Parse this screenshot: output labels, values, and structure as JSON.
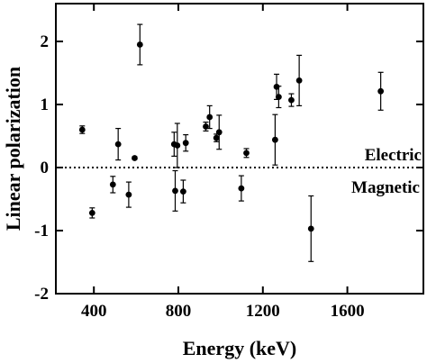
{
  "chart_data": {
    "type": "scatter",
    "xlabel": "Energy (keV)",
    "ylabel": "Linear polarization",
    "xlim": [
      220,
      1960
    ],
    "ylim": [
      -2,
      2.6
    ],
    "xticks": [
      400,
      800,
      1200,
      1600
    ],
    "yticks": [
      -2,
      -1,
      0,
      1,
      2
    ],
    "xtick_labels": [
      "400",
      "800",
      "1200",
      "1600"
    ],
    "ytick_labels": [
      "-2",
      "-1",
      "0",
      "1",
      "2"
    ],
    "grid": false,
    "reference_line": {
      "y": 0,
      "style": "dotted"
    },
    "annotations": [
      {
        "text": "Electric",
        "position": "right, above reference line"
      },
      {
        "text": "Magnetic",
        "position": "right, below reference line"
      }
    ],
    "series": [
      {
        "points": [
          {
            "x": 345,
            "y": 0.6,
            "err": 0.06
          },
          {
            "x": 392,
            "y": -0.72,
            "err": 0.08
          },
          {
            "x": 490,
            "y": -0.27,
            "err": 0.13
          },
          {
            "x": 515,
            "y": 0.37,
            "err": 0.25
          },
          {
            "x": 565,
            "y": -0.43,
            "err": 0.2
          },
          {
            "x": 593,
            "y": 0.15,
            "err": 0.02
          },
          {
            "x": 618,
            "y": 1.95,
            "err": 0.32
          },
          {
            "x": 780,
            "y": 0.37,
            "err": 0.19
          },
          {
            "x": 785,
            "y": -0.37,
            "err": 0.32
          },
          {
            "x": 795,
            "y": 0.35,
            "err": 0.35
          },
          {
            "x": 823,
            "y": -0.38,
            "err": 0.18
          },
          {
            "x": 835,
            "y": 0.39,
            "err": 0.13
          },
          {
            "x": 930,
            "y": 0.65,
            "err": 0.07
          },
          {
            "x": 948,
            "y": 0.8,
            "err": 0.18
          },
          {
            "x": 980,
            "y": 0.47,
            "err": 0.06
          },
          {
            "x": 993,
            "y": 0.56,
            "err": 0.27
          },
          {
            "x": 1098,
            "y": -0.33,
            "err": 0.2
          },
          {
            "x": 1122,
            "y": 0.23,
            "err": 0.07
          },
          {
            "x": 1258,
            "y": 0.44,
            "err": 0.4
          },
          {
            "x": 1265,
            "y": 1.28,
            "err": 0.2
          },
          {
            "x": 1275,
            "y": 1.12,
            "err": 0.17
          },
          {
            "x": 1335,
            "y": 1.07,
            "err": 0.1
          },
          {
            "x": 1372,
            "y": 1.38,
            "err": 0.4
          },
          {
            "x": 1428,
            "y": -0.97,
            "err": 0.52
          },
          {
            "x": 1758,
            "y": 1.21,
            "err": 0.3
          }
        ]
      }
    ]
  }
}
